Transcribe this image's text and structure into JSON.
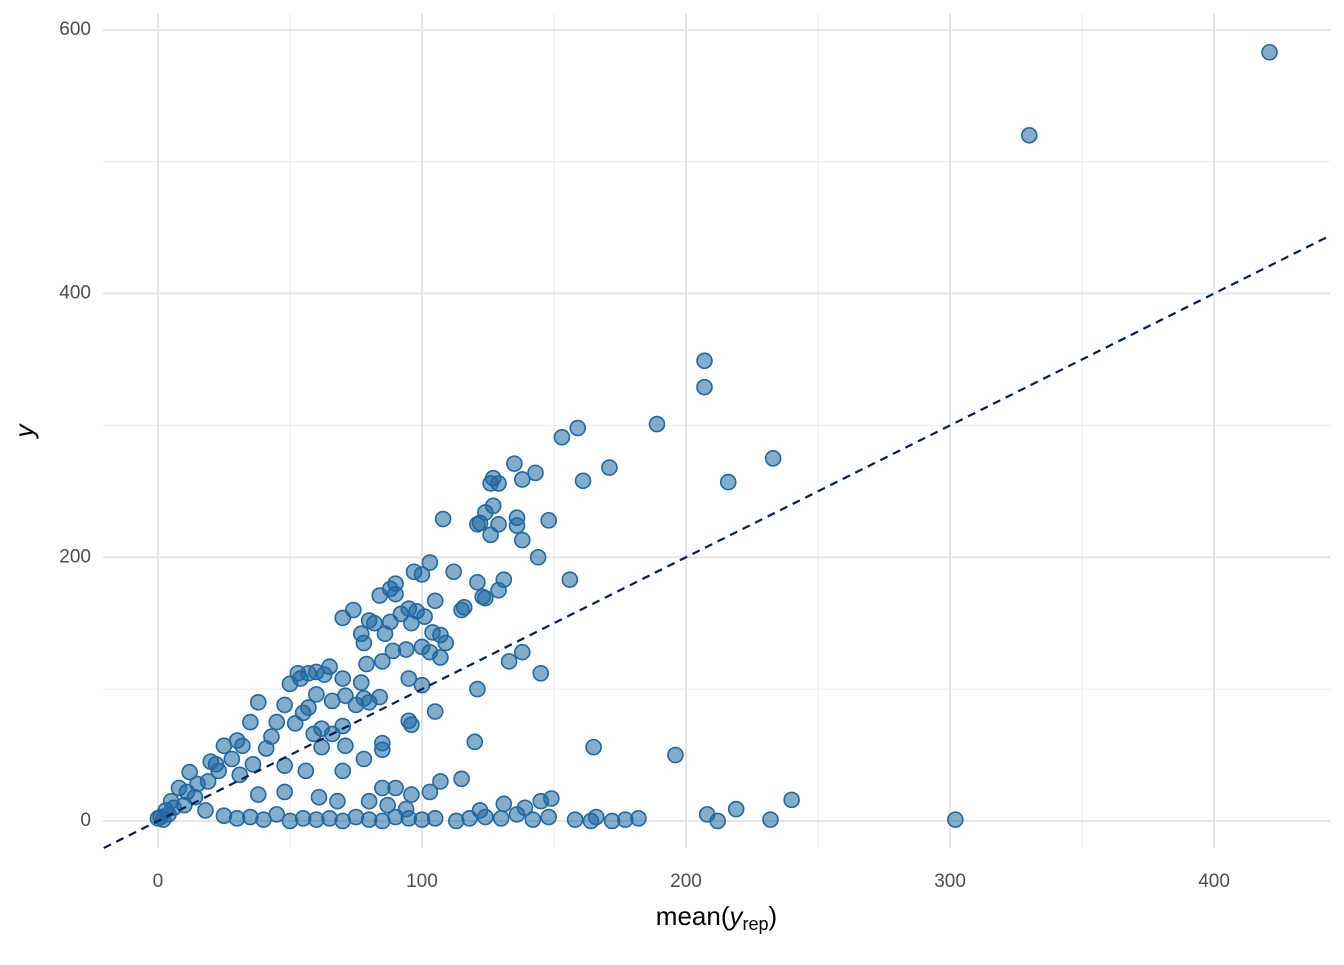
{
  "chart_data": {
    "type": "scatter",
    "xlabel": {
      "prefix": "mean(",
      "var": "y",
      "sub": "rep",
      "suffix": ")"
    },
    "ylabel": "y",
    "xlim": [
      -20.8,
      443.9
    ],
    "ylim": [
      -20.5,
      612
    ],
    "xticks": [
      0,
      100,
      200,
      300,
      400
    ],
    "yticks": [
      0,
      200,
      400,
      600
    ],
    "x_minor_grid": [
      50,
      150,
      250,
      350
    ],
    "y_minor_grid": [
      100,
      300,
      500
    ],
    "grid": true,
    "diagonal": true,
    "line_color": "#011f4b",
    "color": "#1f68a1",
    "fill_opacity": 0.55,
    "series": [
      {
        "x": [
          421,
          330,
          207,
          207,
          189,
          159,
          153,
          171,
          135,
          127,
          143,
          138,
          161,
          216,
          233,
          126,
          129,
          127,
          124,
          108,
          148,
          121,
          136,
          129,
          136,
          122,
          126,
          138,
          103,
          144,
          156,
          97,
          112,
          131,
          121,
          123,
          124,
          129,
          100,
          90,
          88,
          90,
          84,
          105,
          116,
          115,
          74,
          95,
          98,
          92,
          80,
          70,
          88,
          101,
          82,
          77,
          86,
          96,
          107,
          104,
          109,
          78,
          100,
          103,
          89,
          94,
          107,
          85,
          79,
          65,
          57,
          60,
          53,
          54,
          63,
          70,
          77,
          95,
          100,
          121,
          145,
          138,
          133,
          50,
          60,
          71,
          78,
          84,
          66,
          57,
          75,
          80,
          55,
          48,
          38,
          45,
          35,
          52,
          62,
          70,
          66,
          95,
          96,
          105,
          59,
          43,
          30,
          32,
          25,
          41,
          62,
          71,
          85,
          85,
          120,
          165,
          196,
          78,
          28,
          20,
          22,
          36,
          48,
          12,
          23,
          31,
          56,
          70,
          85,
          115,
          107,
          90,
          96,
          103,
          19,
          15,
          8,
          11,
          38,
          48,
          61,
          68,
          80,
          87,
          94,
          122,
          131,
          139,
          145,
          149,
          240,
          219,
          208,
          5,
          3,
          0,
          2,
          1,
          4,
          6,
          10,
          14,
          18,
          25,
          30,
          35,
          40,
          45,
          50,
          55,
          60,
          65,
          70,
          75,
          80,
          85,
          90,
          95,
          100,
          105,
          113,
          118,
          124,
          130,
          136,
          142,
          148,
          158,
          164,
          166,
          172,
          177,
          182,
          212,
          232,
          302
        ],
        "y": [
          583,
          520,
          349,
          329,
          301,
          298,
          291,
          268,
          271,
          260,
          264,
          259,
          258,
          257,
          275,
          256,
          256,
          239,
          234,
          229,
          228,
          225,
          230,
          225,
          224,
          226,
          217,
          213,
          196,
          200,
          183,
          189,
          189,
          183,
          181,
          170,
          169,
          175,
          187,
          180,
          176,
          172,
          171,
          167,
          162,
          160,
          160,
          161,
          159,
          157,
          152,
          154,
          151,
          155,
          150,
          142,
          142,
          150,
          141,
          143,
          135,
          135,
          132,
          128,
          129,
          130,
          124,
          121,
          119,
          117,
          112,
          113,
          112,
          108,
          111,
          108,
          105,
          108,
          103,
          100,
          112,
          128,
          121,
          104,
          96,
          95,
          93,
          94,
          91,
          86,
          88,
          90,
          82,
          88,
          90,
          75,
          75,
          74,
          70,
          72,
          66,
          76,
          73,
          83,
          66,
          64,
          61,
          57,
          57,
          55,
          56,
          57,
          59,
          54,
          60,
          56,
          50,
          47,
          47,
          45,
          43,
          43,
          42,
          37,
          38,
          35,
          38,
          38,
          25,
          32,
          30,
          25,
          20,
          22,
          30,
          28,
          25,
          22,
          20,
          22,
          18,
          15,
          15,
          12,
          9,
          8,
          13,
          10,
          15,
          17,
          16,
          9,
          5,
          15,
          8,
          2,
          1,
          3,
          5,
          10,
          12,
          18,
          8,
          4,
          2,
          3,
          1,
          5,
          0,
          2,
          1,
          2,
          0,
          3,
          1,
          0,
          3,
          2,
          1,
          2,
          0,
          2,
          3,
          2,
          5,
          1,
          3,
          1,
          0,
          3,
          0,
          1,
          2,
          0,
          1,
          1
        ]
      }
    ]
  }
}
